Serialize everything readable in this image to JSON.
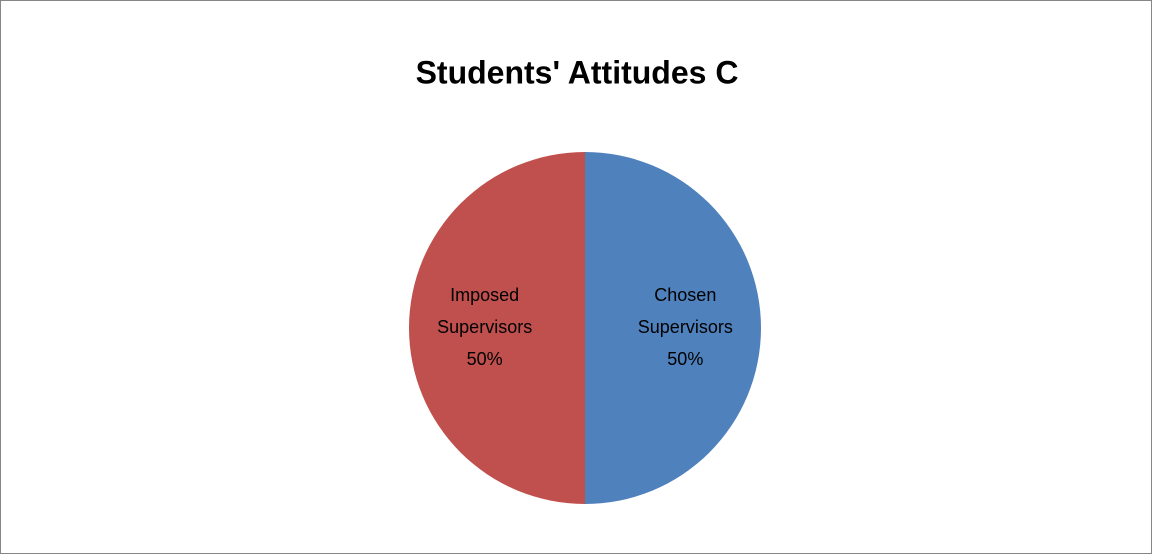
{
  "chart_data": {
    "type": "pie",
    "title": "Students' Attitudes C",
    "categories": [
      "Chosen Supervisors",
      "Imposed Supervisors"
    ],
    "values": [
      50,
      50
    ],
    "value_labels": [
      "50%",
      "50%"
    ],
    "colors": [
      "#4f81bd",
      "#c0504d"
    ]
  }
}
